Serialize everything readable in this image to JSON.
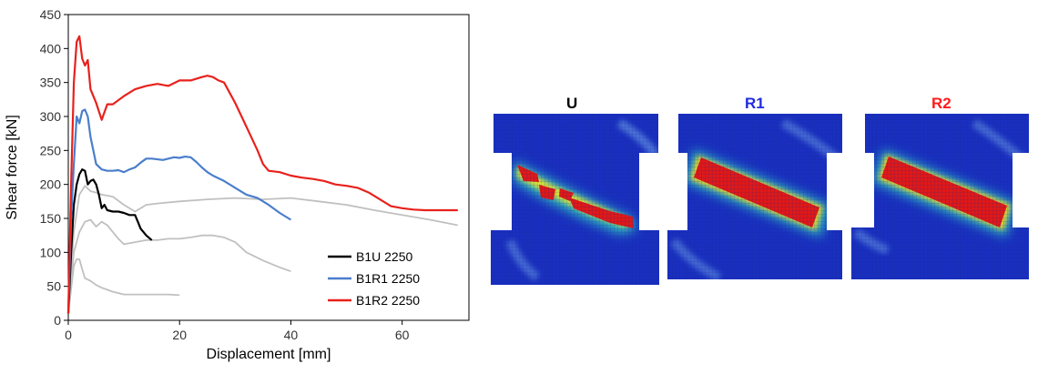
{
  "chart_data": {
    "type": "line",
    "xlabel": "Displacement [mm]",
    "ylabel": "Shear force [kN]",
    "xlim": [
      0,
      72
    ],
    "ylim": [
      0,
      450
    ],
    "xticks": [
      0,
      20,
      40,
      60
    ],
    "yticks": [
      0,
      50,
      100,
      150,
      200,
      250,
      300,
      350,
      400,
      450
    ],
    "grid": false,
    "legend_position": "bottom-right",
    "series": [
      {
        "name": "B1U 2250",
        "color": "#000000",
        "legend": true,
        "x": [
          0,
          0.5,
          1,
          1.5,
          2,
          2.5,
          3,
          3.5,
          4,
          4.5,
          5,
          5.5,
          6,
          6.5,
          7,
          8,
          9,
          10,
          11,
          12,
          12.5,
          13,
          14,
          15
        ],
        "y": [
          10,
          100,
          170,
          200,
          215,
          222,
          220,
          200,
          205,
          207,
          200,
          185,
          165,
          170,
          162,
          160,
          160,
          158,
          155,
          155,
          145,
          135,
          125,
          118
        ]
      },
      {
        "name": "B1R1 2250",
        "color": "#4a7ecb",
        "legend": true,
        "x": [
          0,
          0.5,
          1,
          1.5,
          2,
          2.5,
          3,
          3.5,
          4,
          5,
          6,
          7,
          8,
          9,
          10,
          11,
          12,
          13,
          14,
          15,
          17,
          19,
          20,
          21,
          22,
          23,
          24,
          25,
          26,
          28,
          30,
          32,
          34,
          36,
          38,
          40
        ],
        "y": [
          10,
          150,
          230,
          300,
          290,
          308,
          310,
          300,
          270,
          230,
          222,
          220,
          220,
          221,
          218,
          222,
          225,
          232,
          238,
          238,
          236,
          240,
          239,
          241,
          240,
          233,
          225,
          218,
          213,
          205,
          195,
          185,
          180,
          170,
          158,
          148
        ]
      },
      {
        "name": "B1R2 2250",
        "color": "#e8211c",
        "legend": true,
        "x": [
          0,
          0.5,
          1,
          1.5,
          2,
          2.5,
          3,
          3.5,
          4,
          5,
          6,
          7,
          8,
          10,
          12,
          14,
          16,
          18,
          20,
          22,
          24,
          25,
          26,
          27,
          28,
          30,
          32,
          34,
          35,
          36,
          38,
          40,
          42,
          44,
          46,
          48,
          50,
          52,
          54,
          56,
          58,
          60,
          62,
          64,
          66,
          68,
          70
        ],
        "y": [
          10,
          200,
          350,
          410,
          418,
          385,
          375,
          383,
          340,
          320,
          295,
          318,
          318,
          330,
          340,
          345,
          348,
          345,
          353,
          353,
          358,
          360,
          358,
          353,
          350,
          320,
          285,
          250,
          230,
          220,
          218,
          213,
          210,
          208,
          205,
          200,
          198,
          195,
          188,
          178,
          168,
          165,
          163,
          162,
          162,
          162,
          162
        ]
      },
      {
        "name": "",
        "color": "#c0c0c0",
        "legend": false,
        "x": [
          0,
          1,
          2,
          3,
          4,
          5,
          6,
          8,
          10,
          12,
          14,
          16,
          20,
          25,
          30,
          35,
          40,
          45,
          50,
          55,
          60,
          65,
          70
        ],
        "y": [
          10,
          130,
          185,
          198,
          190,
          188,
          185,
          182,
          170,
          160,
          170,
          172,
          175,
          178,
          180,
          178,
          180,
          175,
          170,
          162,
          155,
          148,
          140
        ]
      },
      {
        "name": "",
        "color": "#c0c0c0",
        "legend": false,
        "x": [
          0,
          1,
          2,
          3,
          4,
          5,
          6,
          7,
          8,
          9,
          10,
          12,
          14,
          16,
          18,
          20,
          22,
          24,
          26,
          28,
          30,
          32,
          35,
          38,
          40
        ],
        "y": [
          10,
          100,
          130,
          145,
          148,
          138,
          145,
          140,
          130,
          120,
          112,
          115,
          118,
          118,
          120,
          120,
          122,
          125,
          125,
          122,
          115,
          100,
          88,
          78,
          72
        ]
      },
      {
        "name": "",
        "color": "#c0c0c0",
        "legend": false,
        "x": [
          0,
          1,
          1.5,
          2,
          2.5,
          3,
          4,
          5,
          6,
          7,
          8,
          10,
          12,
          14,
          16,
          18,
          20
        ],
        "y": [
          10,
          80,
          90,
          90,
          75,
          62,
          58,
          52,
          48,
          45,
          42,
          38,
          38,
          38,
          38,
          38,
          37
        ]
      }
    ]
  },
  "fem_panels": [
    {
      "label": "U",
      "label_color": "#000000"
    },
    {
      "label": "R1",
      "label_color": "#1f2be0"
    },
    {
      "label": "R2",
      "label_color": "#ff1a1a"
    }
  ]
}
